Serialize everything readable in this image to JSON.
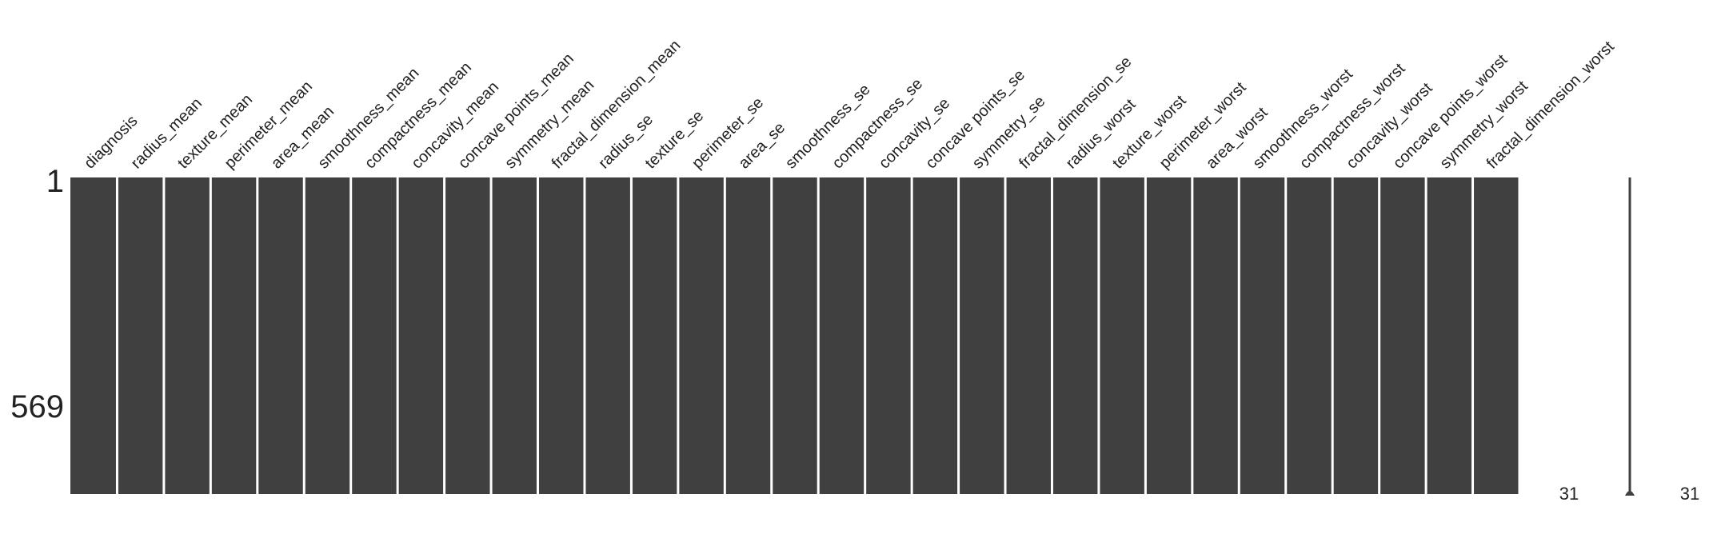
{
  "chart_data": {
    "type": "heatmap",
    "title": "",
    "columns": [
      "diagnosis",
      "radius_mean",
      "texture_mean",
      "perimeter_mean",
      "area_mean",
      "smoothness_mean",
      "compactness_mean",
      "concavity_mean",
      "concave points_mean",
      "symmetry_mean",
      "fractal_dimension_mean",
      "radius_se",
      "texture_se",
      "perimeter_se",
      "area_se",
      "smoothness_se",
      "compactness_se",
      "concavity_se",
      "concave points_se",
      "symmetry_se",
      "fractal_dimension_se",
      "radius_worst",
      "texture_worst",
      "perimeter_worst",
      "area_worst",
      "smoothness_worst",
      "compactness_worst",
      "concavity_worst",
      "concave points_worst",
      "symmetry_worst",
      "fractal_dimension_worst"
    ],
    "row_labels": [
      "1",
      "569"
    ],
    "n_rows": 569,
    "missing_counts": [
      0,
      0,
      0,
      0,
      0,
      0,
      0,
      0,
      0,
      0,
      0,
      0,
      0,
      0,
      0,
      0,
      0,
      0,
      0,
      0,
      0,
      0,
      0,
      0,
      0,
      0,
      0,
      0,
      0,
      0,
      0
    ],
    "sparkline": {
      "min_label": "31",
      "max_label": "31",
      "values": [
        31,
        31
      ]
    },
    "grid": false,
    "colors": {
      "present": "#404040",
      "missing": "#ffffff",
      "background": "#ffffff",
      "text": "#222222"
    }
  }
}
